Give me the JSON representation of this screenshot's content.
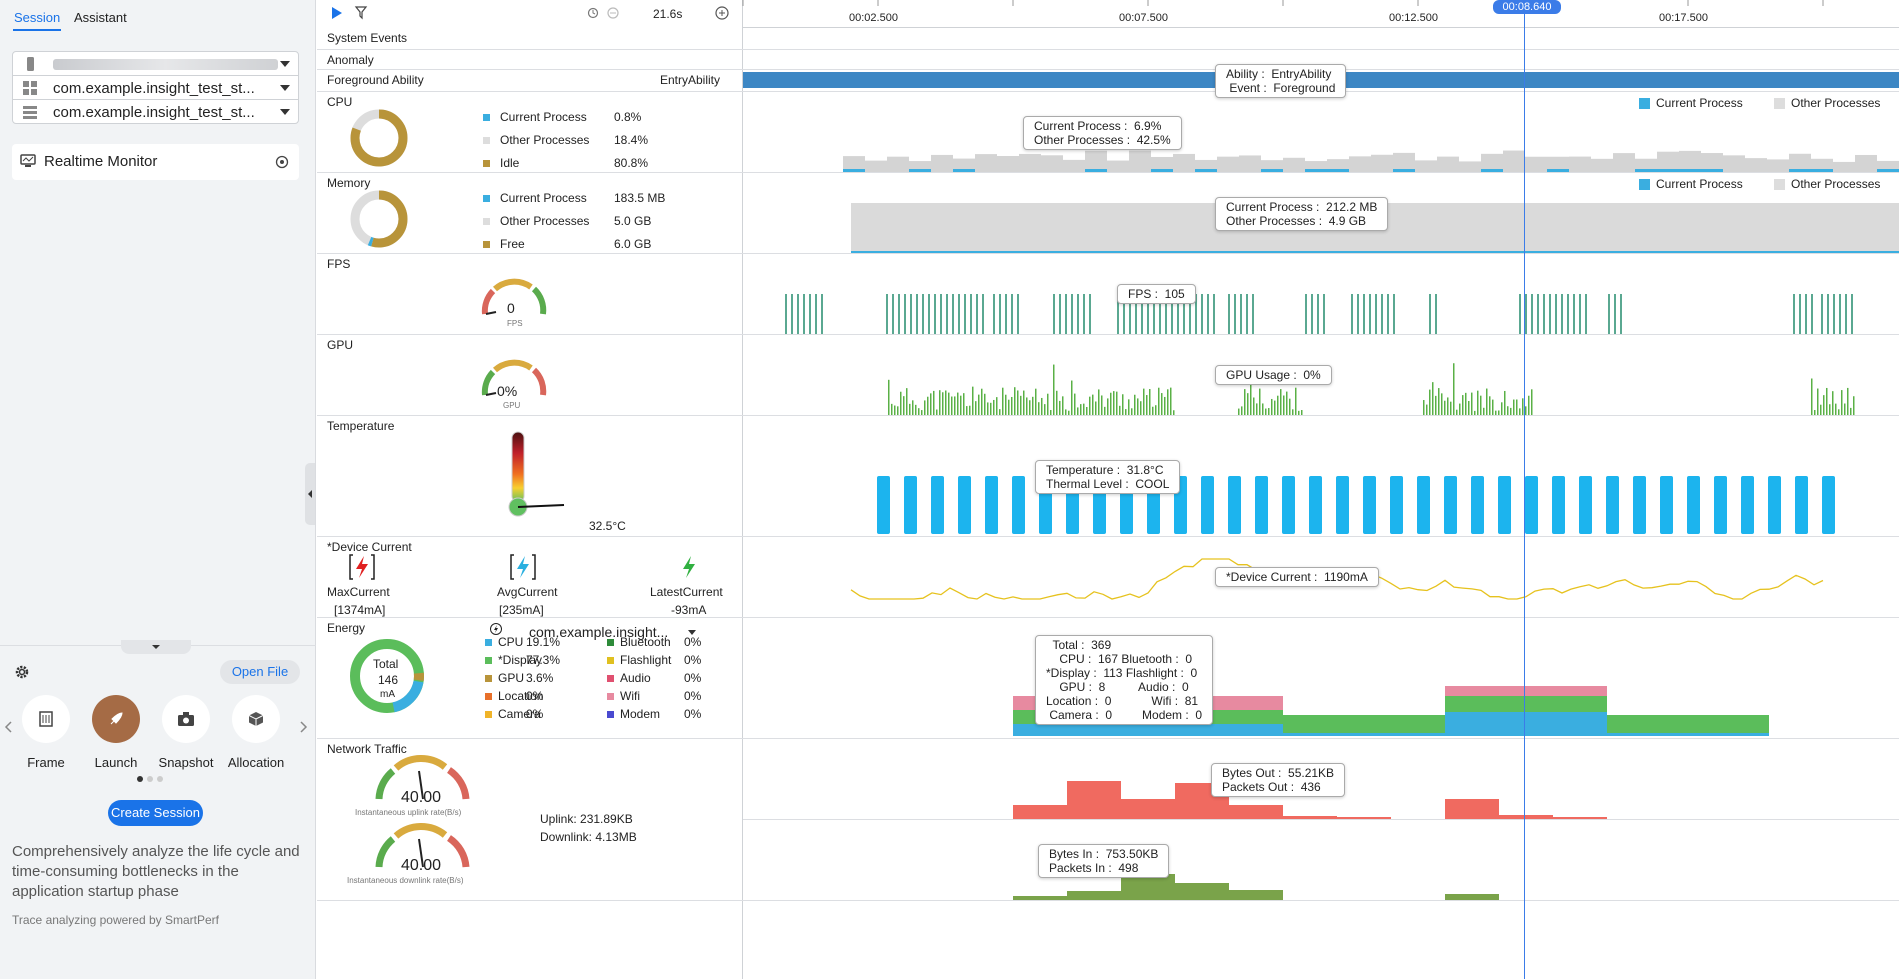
{
  "sidebar": {
    "tabs": [
      "Session",
      "Assistant"
    ],
    "devices": [
      "",
      "com.example.insight_test_st...",
      "com.example.insight_test_st..."
    ],
    "realtime_label": "Realtime Monitor",
    "open_file": "Open File",
    "tools": [
      "Frame",
      "Launch",
      "Snapshot",
      "Allocation"
    ],
    "create_session": "Create Session",
    "description": "Comprehensively analyze the life cycle and time-consuming bottlenecks in the application startup phase",
    "powered_by": "Trace analyzing powered by SmartPerf"
  },
  "toolbar": {
    "duration": "21.6s"
  },
  "timeline": {
    "ticks": [
      "00:02.500",
      "00:07.500",
      "00:12.500",
      "00:17.500"
    ],
    "cursor_time": "00:08.640"
  },
  "rows": {
    "system_events": "System Events",
    "anomaly": "Anomaly",
    "foreground": {
      "title": "Foreground Ability",
      "value": "EntryAbility",
      "tooltip": "Ability :  EntryAbility\n Event :  Foreground"
    },
    "cpu": {
      "title": "CPU",
      "legend": [
        {
          "name": "Current Process",
          "value": "0.8%",
          "color": "#3aaee0"
        },
        {
          "name": "Other Processes",
          "value": "18.4%",
          "color": "#dddddd"
        },
        {
          "name": "Idle",
          "value": "80.8%",
          "color": "#b8943a"
        }
      ],
      "series_legend": [
        "Current Process",
        "Other Processes"
      ],
      "tooltip": "Current Process :  6.9%\nOther Processes :  42.5%"
    },
    "memory": {
      "title": "Memory",
      "legend": [
        {
          "name": "Current Process",
          "value": "183.5 MB",
          "color": "#3aaee0"
        },
        {
          "name": "Other Processes",
          "value": "5.0 GB",
          "color": "#dddddd"
        },
        {
          "name": "Free",
          "value": "6.0 GB",
          "color": "#b8943a"
        }
      ],
      "series_legend": [
        "Current Process",
        "Other Processes"
      ],
      "tooltip": "Current Process :  212.2 MB\nOther Processes :  4.9 GB"
    },
    "fps": {
      "title": "FPS",
      "gauge_value": "0",
      "gauge_unit": "FPS",
      "tooltip": "FPS :  105"
    },
    "gpu": {
      "title": "GPU",
      "gauge_value": "0%",
      "gauge_unit": "GPU",
      "tooltip": "GPU Usage :  0%"
    },
    "temperature": {
      "title": "Temperature",
      "value": "32.5°C",
      "tooltip": "Temperature :  31.8°C\nThermal Level :  COOL"
    },
    "device_current": {
      "title": "*Device Current",
      "items": [
        {
          "name": "MaxCurrent",
          "value": "[1374mA]"
        },
        {
          "name": "AvgCurrent",
          "value": "[235mA]"
        },
        {
          "name": "LatestCurrent",
          "value": "-93mA"
        }
      ],
      "tooltip": "*Device Current :  1190mA"
    },
    "energy": {
      "title": "Energy",
      "total_label": "Total",
      "total_value": "146",
      "total_unit": "mA",
      "app": "com.example.insight...",
      "legend_left": [
        {
          "name": "CPU",
          "value": "19.1%",
          "color": "#3aaee0"
        },
        {
          "name": "*Display",
          "value": "77.3%",
          "color": "#5bbd5b"
        },
        {
          "name": "GPU",
          "value": "3.6%",
          "color": "#b8943a"
        },
        {
          "name": "Location",
          "value": "0%",
          "color": "#e8702a"
        },
        {
          "name": "Camera",
          "value": "0%",
          "color": "#f0b429"
        }
      ],
      "legend_right": [
        {
          "name": "Bluetooth",
          "value": "0%",
          "color": "#2e8b3a"
        },
        {
          "name": "Flashlight",
          "value": "0%",
          "color": "#e0c020"
        },
        {
          "name": "Audio",
          "value": "0%",
          "color": "#e05070"
        },
        {
          "name": "Wifi",
          "value": "0%",
          "color": "#e78aa0"
        },
        {
          "name": "Modem",
          "value": "0%",
          "color": "#4a4ad0"
        }
      ],
      "tooltip": "  Total :  369\n    CPU :  167 Bluetooth :  0\n*Display :  113 Flashlight :  0\n    GPU :  8          Audio :  0\nLocation :  0            Wifi :  81\n Camera :  0         Modem :  0"
    },
    "network": {
      "title": "Network Traffic",
      "uplink_gauge": "40.00",
      "uplink_caption": "Instantaneous uplink rate(B/s)",
      "downlink_gauge": "40.00",
      "downlink_caption": "Instantaneous downlink rate(B/s)",
      "uplink": "Uplink: 231.89KB",
      "downlink": "Downlink: 4.13MB",
      "tooltip_out": "Bytes Out :  55.21KB\nPackets Out :  436",
      "tooltip_in": "Bytes In :  753.50KB\nPackets In :  498"
    }
  }
}
